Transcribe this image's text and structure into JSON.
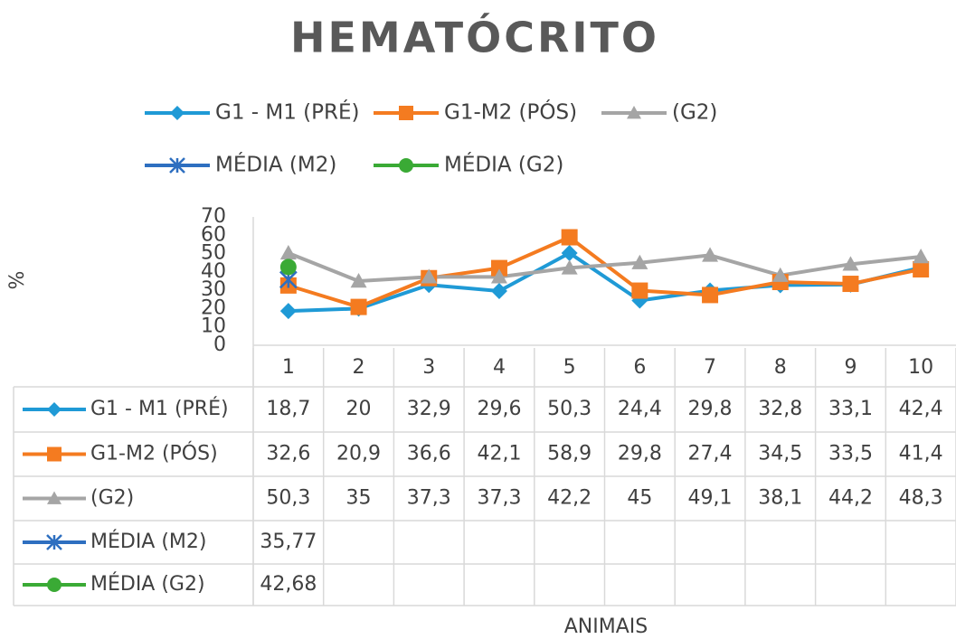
{
  "chart_data": {
    "type": "line",
    "title": "HEMATÓCRITO",
    "x_label": "ANIMAIS",
    "y_label": "%",
    "categories": [
      "1",
      "2",
      "3",
      "4",
      "5",
      "6",
      "7",
      "8",
      "9",
      "10"
    ],
    "ylim": [
      0,
      70
    ],
    "yticks": [
      0,
      10,
      20,
      30,
      40,
      50,
      60,
      70
    ],
    "grid": false,
    "legend": "top",
    "series": [
      {
        "name": "G1 - M1 (PRÉ)",
        "color": "#1f9ad6",
        "marker": "diamond",
        "values": [
          18.7,
          20,
          32.9,
          29.6,
          50.3,
          24.4,
          29.8,
          32.8,
          33.1,
          42.4
        ],
        "value_labels": [
          "18,7",
          "20",
          "32,9",
          "29,6",
          "50,3",
          "24,4",
          "29,8",
          "32,8",
          "33,1",
          "42,4"
        ]
      },
      {
        "name": "G1-M2 (PÓS)",
        "color": "#f47b20",
        "marker": "square",
        "values": [
          32.6,
          20.9,
          36.6,
          42.1,
          58.9,
          29.8,
          27.4,
          34.5,
          33.5,
          41.4
        ],
        "value_labels": [
          "32,6",
          "20,9",
          "36,6",
          "42,1",
          "58,9",
          "29,8",
          "27,4",
          "34,5",
          "33,5",
          "41,4"
        ]
      },
      {
        "name": "(G2)",
        "color": "#a5a5a5",
        "marker": "triangle",
        "values": [
          50.3,
          35,
          37.3,
          37.3,
          42.2,
          45,
          49.1,
          38.1,
          44.2,
          48.3
        ],
        "value_labels": [
          "50,3",
          "35",
          "37,3",
          "37,3",
          "42,2",
          "45",
          "49,1",
          "38,1",
          "44,2",
          "48,3"
        ]
      },
      {
        "name": "MÉDIA (M2)",
        "color": "#2e6fc0",
        "marker": "star",
        "values": [
          35.77,
          null,
          null,
          null,
          null,
          null,
          null,
          null,
          null,
          null
        ],
        "value_labels": [
          "35,77",
          null,
          null,
          null,
          null,
          null,
          null,
          null,
          null,
          null
        ]
      },
      {
        "name": "MÉDIA (G2)",
        "color": "#3aaa35",
        "marker": "circle",
        "values": [
          42.68,
          null,
          null,
          null,
          null,
          null,
          null,
          null,
          null,
          null
        ],
        "value_labels": [
          "42,68",
          null,
          null,
          null,
          null,
          null,
          null,
          null,
          null,
          null
        ]
      }
    ]
  }
}
